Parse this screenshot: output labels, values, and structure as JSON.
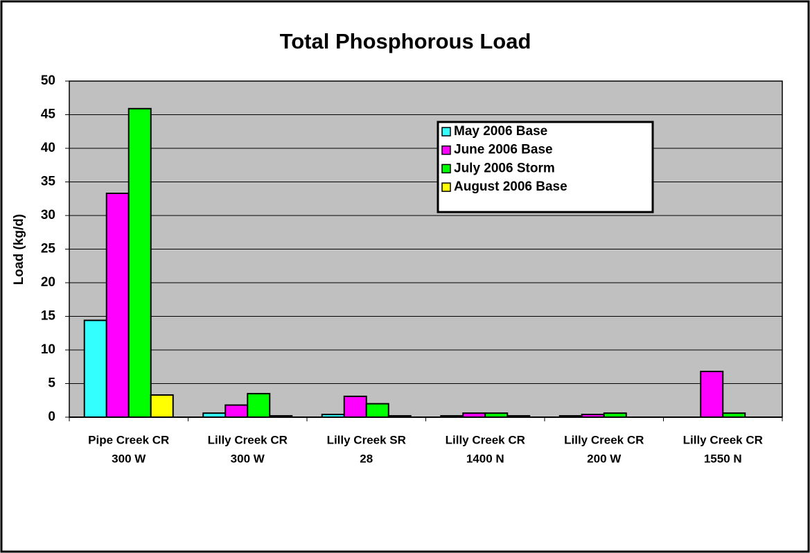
{
  "chart_data": {
    "type": "bar",
    "title": "Total Phosphorous Load",
    "y_label": "Load (kg/d)",
    "categories": [
      [
        "Pipe Creek CR",
        "300 W"
      ],
      [
        "Lilly Creek CR",
        "300 W"
      ],
      [
        "Lilly Creek SR",
        "28"
      ],
      [
        "Lilly Creek CR",
        "1400 N"
      ],
      [
        "Lilly Creek CR",
        "200 W"
      ],
      [
        "Lilly Creek CR",
        "1550 N"
      ]
    ],
    "series": [
      {
        "name": "May 2006 Base",
        "color": "#33ffff",
        "values": [
          14.4,
          0.6,
          0.4,
          0.2,
          0.2,
          null
        ]
      },
      {
        "name": "June 2006 Base",
        "color": "#ff00ff",
        "values": [
          33.3,
          1.8,
          3.1,
          0.6,
          0.4,
          6.8
        ]
      },
      {
        "name": "July 2006 Storm",
        "color": "#00ff00",
        "values": [
          45.9,
          3.5,
          2.0,
          0.6,
          0.6,
          0.6
        ]
      },
      {
        "name": "August 2006 Base",
        "color": "#ffff00",
        "values": [
          3.3,
          0.2,
          0.2,
          0.2,
          null,
          null
        ]
      }
    ],
    "ylim": [
      0,
      50
    ],
    "yticks": [
      0,
      5,
      10,
      15,
      20,
      25,
      30,
      35,
      40,
      45,
      50
    ],
    "grid": true,
    "legend": "upper-right",
    "plot_background": "#c0c0c0"
  }
}
